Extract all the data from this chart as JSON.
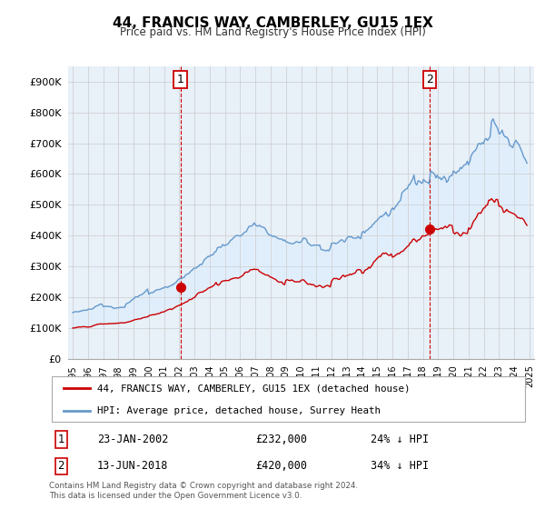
{
  "title": "44, FRANCIS WAY, CAMBERLEY, GU15 1EX",
  "subtitle": "Price paid vs. HM Land Registry's House Price Index (HPI)",
  "hpi_label": "HPI: Average price, detached house, Surrey Heath",
  "property_label": "44, FRANCIS WAY, CAMBERLEY, GU15 1EX (detached house)",
  "sale1_date": "23-JAN-2002",
  "sale1_price": 232000,
  "sale1_note": "24% ↓ HPI",
  "sale2_date": "13-JUN-2018",
  "sale2_price": 420000,
  "sale2_note": "34% ↓ HPI",
  "footer": "Contains HM Land Registry data © Crown copyright and database right 2024.\nThis data is licensed under the Open Government Licence v3.0.",
  "hpi_color": "#6699cc",
  "property_color": "#cc0000",
  "fill_color": "#ddeeff",
  "background_color": "#ffffff",
  "chart_bg_color": "#e8f0f8",
  "ylim": [
    0,
    950000
  ],
  "yticks": [
    0,
    100000,
    200000,
    300000,
    400000,
    500000,
    600000,
    700000,
    800000,
    900000
  ],
  "ytick_labels": [
    "£0",
    "£100K",
    "£200K",
    "£300K",
    "£400K",
    "£500K",
    "£600K",
    "£700K",
    "£800K",
    "£900K"
  ],
  "sale1_x": 2002.07,
  "sale1_y": 232000,
  "sale2_x": 2018.46,
  "sale2_y": 420000,
  "vline1_x": 2002.07,
  "vline2_x": 2018.46,
  "xmin": 1994.7,
  "xmax": 2025.3
}
